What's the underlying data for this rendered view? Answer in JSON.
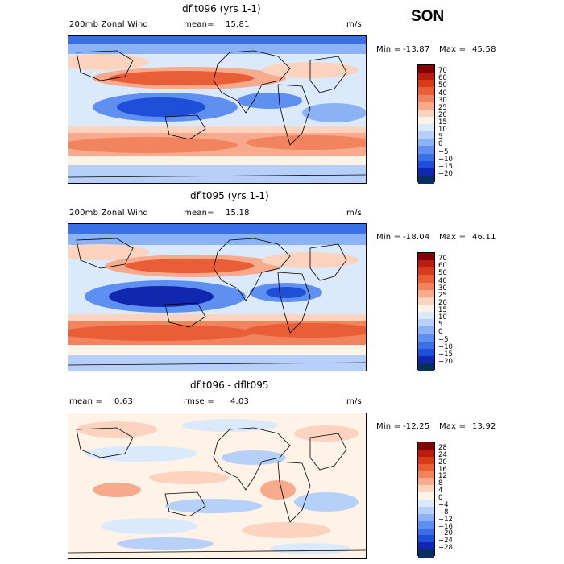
{
  "season": "SON",
  "colors": {
    "diverging": [
      "#053061",
      "#1027b0",
      "#1f4fd8",
      "#3a6fe6",
      "#5f8ff0",
      "#8cb2f6",
      "#b7d0fa",
      "#dbe9fc",
      "#fff2e6",
      "#fbd3be",
      "#f7aa8c",
      "#f1835e",
      "#e95d37",
      "#d83a1a",
      "#b71c0e",
      "#830000"
    ]
  },
  "panels": [
    {
      "title": "dflt096 (yrs 1-1)",
      "left_label": "200mb Zonal Wind",
      "mean_label": "mean=",
      "mean_value": "15.81",
      "units": "m/s",
      "min_label": "Min =",
      "min_value": "-13.87",
      "max_label": "Max =",
      "max_value": "45.58"
    },
    {
      "title": "dflt095 (yrs 1-1)",
      "left_label": "200mb Zonal Wind",
      "mean_label": "mean=",
      "mean_value": "15.18",
      "units": "m/s",
      "min_label": "Min =",
      "min_value": "-18.04",
      "max_label": "Max =",
      "max_value": "46.11"
    },
    {
      "title": "dflt096 - dflt095",
      "left_label": "mean =",
      "mean_label": "",
      "mean_value": "0.63",
      "rmse_label": "rmse =",
      "rmse_value": "4.03",
      "units": "m/s",
      "min_label": "Min =",
      "min_value": "-12.25",
      "max_label": "Max =",
      "max_value": "13.92"
    }
  ],
  "chart_data": [
    {
      "type": "heatmap",
      "title": "dflt096 (yrs 1-1)",
      "variable": "200mb Zonal Wind",
      "units": "m/s",
      "mean": 15.81,
      "min": -13.87,
      "max": 45.58,
      "colorbar_ticks": [
        "70",
        "60",
        "50",
        "40",
        "30",
        "25",
        "20",
        "15",
        "10",
        "5",
        "0",
        "−5",
        "−10",
        "−15",
        "−20"
      ]
    },
    {
      "type": "heatmap",
      "title": "dflt095 (yrs 1-1)",
      "variable": "200mb Zonal Wind",
      "units": "m/s",
      "mean": 15.18,
      "min": -18.04,
      "max": 46.11,
      "colorbar_ticks": [
        "70",
        "60",
        "50",
        "40",
        "30",
        "25",
        "20",
        "15",
        "10",
        "5",
        "0",
        "−5",
        "−10",
        "−15",
        "−20"
      ]
    },
    {
      "type": "heatmap",
      "title": "dflt096 - dflt095",
      "units": "m/s",
      "mean": 0.63,
      "rmse": 4.03,
      "min": -12.25,
      "max": 13.92,
      "colorbar_ticks": [
        "28",
        "24",
        "20",
        "16",
        "12",
        "8",
        "4",
        "0",
        "−4",
        "−8",
        "−12",
        "−16",
        "−20",
        "−24",
        "−28"
      ]
    }
  ]
}
